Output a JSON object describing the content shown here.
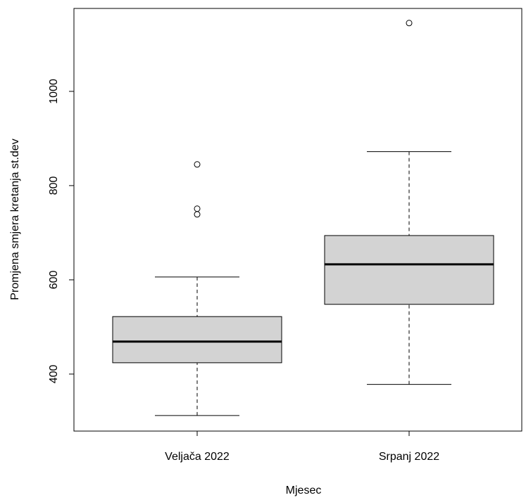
{
  "chart_data": {
    "type": "box",
    "x_label": "Mjesec",
    "y_label": "Promjena smjera kretanja st.dev",
    "categories": [
      "Veljača 2022",
      "Srpanj 2022"
    ],
    "boxes": [
      {
        "low": 312,
        "q1": 424,
        "median": 469,
        "q3": 522,
        "high": 606,
        "outliers": [
          739,
          751,
          845
        ]
      },
      {
        "low": 378,
        "q1": 548,
        "median": 633,
        "q3": 694,
        "high": 872,
        "outliers": [
          1145
        ]
      }
    ],
    "color": "#d3d3d3",
    "ylim": [
      279,
      1176
    ],
    "yticks": [
      400,
      600,
      800,
      1000
    ]
  }
}
